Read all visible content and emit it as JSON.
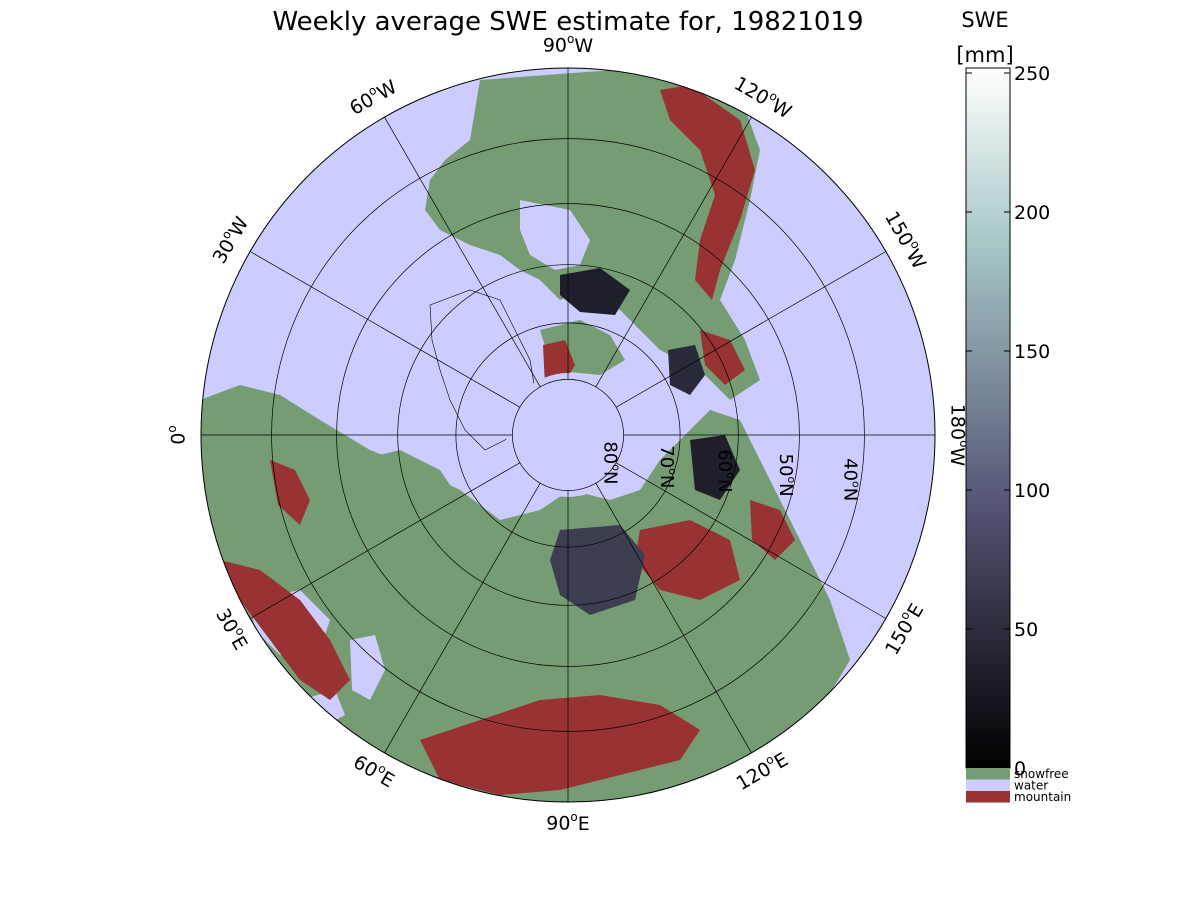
{
  "figure": {
    "title": "Weekly average SWE estimate for, 19821019"
  },
  "projection": {
    "type": "north-polar-stereographic",
    "center": "North Pole",
    "southern_limit_lat_deg": 30
  },
  "graticule": {
    "meridian_labels": [
      {
        "text": "90",
        "unit": "o",
        "hemi": "W",
        "lon": -90
      },
      {
        "text": "120",
        "unit": "o",
        "hemi": "W",
        "lon": -120
      },
      {
        "text": "150",
        "unit": "o",
        "hemi": "W",
        "lon": -150
      },
      {
        "text": "180",
        "unit": "o",
        "hemi": "W",
        "lon": 180
      },
      {
        "text": "150",
        "unit": "o",
        "hemi": "E",
        "lon": 150
      },
      {
        "text": "120",
        "unit": "o",
        "hemi": "E",
        "lon": 120
      },
      {
        "text": "90",
        "unit": "o",
        "hemi": "E",
        "lon": 90
      },
      {
        "text": "60",
        "unit": "o",
        "hemi": "E",
        "lon": 60
      },
      {
        "text": "30",
        "unit": "o",
        "hemi": "E",
        "lon": 30
      },
      {
        "text": "0",
        "unit": "o",
        "hemi": "",
        "lon": 0
      },
      {
        "text": "30",
        "unit": "o",
        "hemi": "W",
        "lon": -30
      },
      {
        "text": "60",
        "unit": "o",
        "hemi": "W",
        "lon": -60
      }
    ],
    "parallel_labels": [
      {
        "text": "80",
        "unit": "o",
        "hemi": "N",
        "lat": 80
      },
      {
        "text": "70",
        "unit": "o",
        "hemi": "N",
        "lat": 70
      },
      {
        "text": "60",
        "unit": "o",
        "hemi": "N",
        "lat": 60
      },
      {
        "text": "50",
        "unit": "o",
        "hemi": "N",
        "lat": 50
      },
      {
        "text": "40",
        "unit": "o",
        "hemi": "N",
        "lat": 40
      }
    ]
  },
  "colorbar": {
    "label_line1": "SWE",
    "label_line2": "[mm]",
    "min": 0,
    "max": 250,
    "ticks": [
      "0",
      "50",
      "100",
      "150",
      "200",
      "250"
    ],
    "tick_values": [
      0,
      50,
      100,
      150,
      200,
      250
    ],
    "colormap": "bone",
    "categories": [
      {
        "label": "snowfree",
        "color": "#769c73"
      },
      {
        "label": "water",
        "color": "#ccccff"
      },
      {
        "label": "mountain",
        "color": "#993333"
      }
    ]
  },
  "colors": {
    "water": "#ccccff",
    "land": "#769c73",
    "mountain": "#993333",
    "snow_low": "#1f1f2c",
    "snow_mid": "#3e3e52"
  }
}
